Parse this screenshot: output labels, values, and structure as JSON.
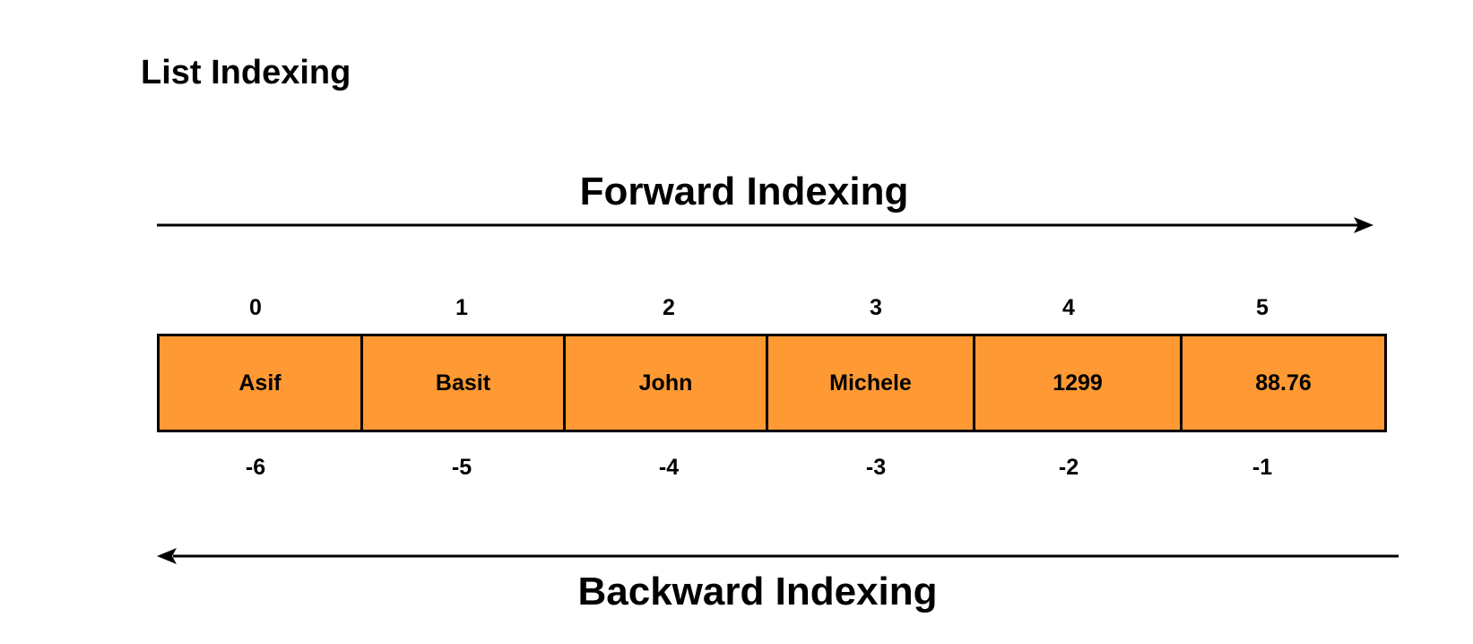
{
  "title": "List Indexing",
  "forward_label": "Forward Indexing",
  "backward_label": "Backward Indexing",
  "colors": {
    "cell_fill": "#ff9933",
    "border": "#000000",
    "text": "#000000"
  },
  "items": [
    "Asif",
    "Basit",
    "John",
    "Michele",
    "1299",
    "88.76"
  ],
  "forward_indices": [
    "0",
    "1",
    "2",
    "3",
    "4",
    "5"
  ],
  "backward_indices": [
    "-6",
    "-5",
    "-4",
    "-3",
    "-2",
    "-1"
  ]
}
